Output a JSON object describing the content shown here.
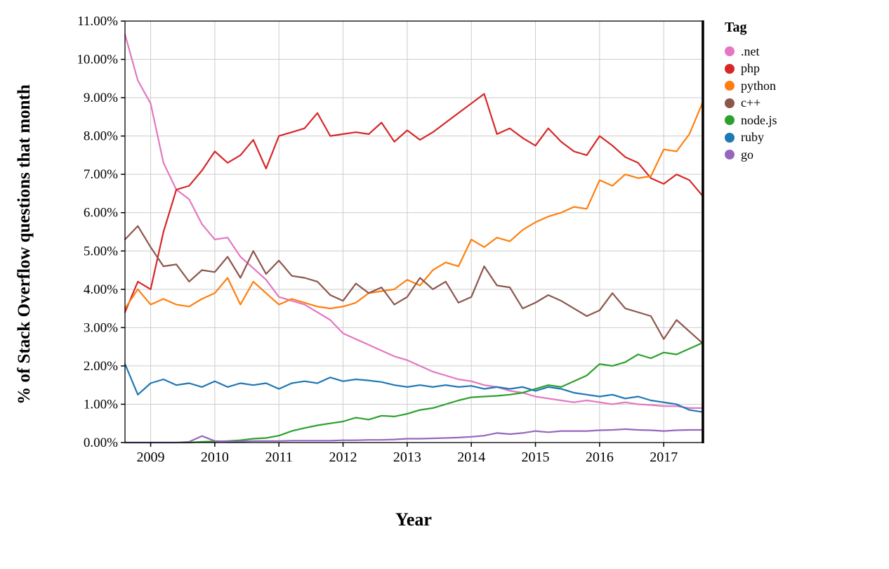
{
  "chart_data": {
    "type": "line",
    "title": "",
    "xlabel": "Year",
    "ylabel": "% of Stack Overflow questions that month",
    "legend_title": "Tag",
    "legend_position": "top-right",
    "grid": true,
    "xlim": [
      2008.6,
      2017.6
    ],
    "ylim": [
      0,
      11
    ],
    "x_tick_values": [
      2009,
      2010,
      2011,
      2012,
      2013,
      2014,
      2015,
      2016,
      2017
    ],
    "x_tick_labels": [
      "2009",
      "2010",
      "2011",
      "2012",
      "2013",
      "2014",
      "2015",
      "2016",
      "2017"
    ],
    "y_tick_values": [
      0,
      1,
      2,
      3,
      4,
      5,
      6,
      7,
      8,
      9,
      10,
      11
    ],
    "y_tick_labels": [
      "0.00%",
      "1.00%",
      "2.00%",
      "3.00%",
      "4.00%",
      "5.00%",
      "6.00%",
      "7.00%",
      "8.00%",
      "9.00%",
      "10.00%",
      "11.00%"
    ],
    "x": [
      2008.6,
      2008.8,
      2009.0,
      2009.2,
      2009.4,
      2009.6,
      2009.8,
      2010.0,
      2010.2,
      2010.4,
      2010.6,
      2010.8,
      2011.0,
      2011.2,
      2011.4,
      2011.6,
      2011.8,
      2012.0,
      2012.2,
      2012.4,
      2012.6,
      2012.8,
      2013.0,
      2013.2,
      2013.4,
      2013.6,
      2013.8,
      2014.0,
      2014.2,
      2014.4,
      2014.6,
      2014.8,
      2015.0,
      2015.2,
      2015.4,
      2015.6,
      2015.8,
      2016.0,
      2016.2,
      2016.4,
      2016.6,
      2016.8,
      2017.0,
      2017.2,
      2017.4,
      2017.6
    ],
    "series": [
      {
        "name": ".net",
        "color": "#e377c2",
        "values": [
          10.65,
          9.45,
          8.85,
          7.3,
          6.6,
          6.35,
          5.7,
          5.3,
          5.35,
          4.85,
          4.55,
          4.25,
          3.8,
          3.7,
          3.6,
          3.4,
          3.2,
          2.85,
          2.7,
          2.55,
          2.4,
          2.25,
          2.15,
          2.0,
          1.85,
          1.75,
          1.65,
          1.6,
          1.5,
          1.45,
          1.35,
          1.3,
          1.2,
          1.15,
          1.1,
          1.05,
          1.1,
          1.05,
          1.0,
          1.05,
          1.0,
          0.98,
          0.95,
          0.95,
          0.9,
          0.9
        ]
      },
      {
        "name": "php",
        "color": "#d62728",
        "values": [
          3.4,
          4.2,
          4.0,
          5.5,
          6.6,
          6.7,
          7.1,
          7.6,
          7.3,
          7.5,
          7.9,
          7.15,
          8.0,
          8.1,
          8.2,
          8.6,
          8.0,
          8.05,
          8.1,
          8.05,
          8.35,
          7.85,
          8.15,
          7.9,
          8.1,
          8.35,
          8.6,
          8.85,
          9.1,
          8.05,
          8.2,
          7.95,
          7.75,
          8.2,
          7.85,
          7.6,
          7.5,
          8.0,
          7.75,
          7.45,
          7.3,
          6.9,
          6.75,
          7.0,
          6.85,
          6.45
        ]
      },
      {
        "name": "python",
        "color": "#ff7f0e",
        "values": [
          3.5,
          4.0,
          3.6,
          3.75,
          3.6,
          3.55,
          3.75,
          3.9,
          4.3,
          3.6,
          4.2,
          3.9,
          3.6,
          3.75,
          3.65,
          3.55,
          3.5,
          3.55,
          3.65,
          3.9,
          3.95,
          4.0,
          4.25,
          4.1,
          4.5,
          4.7,
          4.6,
          5.3,
          5.1,
          5.35,
          5.25,
          5.55,
          5.75,
          5.9,
          6.0,
          6.15,
          6.1,
          6.85,
          6.7,
          7.0,
          6.9,
          6.95,
          7.65,
          7.6,
          8.05,
          8.85
        ]
      },
      {
        "name": "c++",
        "color": "#8c564b",
        "values": [
          5.3,
          5.65,
          5.1,
          4.6,
          4.65,
          4.2,
          4.5,
          4.45,
          4.85,
          4.3,
          5.0,
          4.4,
          4.75,
          4.35,
          4.3,
          4.2,
          3.85,
          3.7,
          4.15,
          3.9,
          4.05,
          3.6,
          3.8,
          4.3,
          4.0,
          4.2,
          3.65,
          3.8,
          4.6,
          4.1,
          4.05,
          3.5,
          3.65,
          3.85,
          3.7,
          3.5,
          3.3,
          3.45,
          3.9,
          3.5,
          3.4,
          3.3,
          2.7,
          3.2,
          2.9,
          2.6
        ]
      },
      {
        "name": "node.js",
        "color": "#2ca02c",
        "values": [
          0.0,
          0.0,
          0.0,
          0.0,
          0.0,
          0.0,
          0.02,
          0.03,
          0.04,
          0.06,
          0.1,
          0.12,
          0.18,
          0.3,
          0.38,
          0.45,
          0.5,
          0.55,
          0.65,
          0.6,
          0.7,
          0.68,
          0.75,
          0.85,
          0.9,
          1.0,
          1.1,
          1.18,
          1.2,
          1.22,
          1.25,
          1.3,
          1.4,
          1.5,
          1.45,
          1.6,
          1.75,
          2.05,
          2.0,
          2.1,
          2.3,
          2.2,
          2.35,
          2.3,
          2.45,
          2.6
        ]
      },
      {
        "name": "ruby",
        "color": "#1f77b4",
        "values": [
          2.05,
          1.25,
          1.55,
          1.65,
          1.5,
          1.55,
          1.45,
          1.6,
          1.45,
          1.55,
          1.5,
          1.55,
          1.4,
          1.55,
          1.6,
          1.55,
          1.7,
          1.6,
          1.65,
          1.62,
          1.58,
          1.5,
          1.45,
          1.5,
          1.45,
          1.5,
          1.45,
          1.48,
          1.4,
          1.45,
          1.4,
          1.45,
          1.35,
          1.45,
          1.4,
          1.3,
          1.25,
          1.2,
          1.25,
          1.15,
          1.2,
          1.1,
          1.05,
          1.0,
          0.85,
          0.8
        ]
      },
      {
        "name": "go",
        "color": "#9467bd",
        "values": [
          0.0,
          0.0,
          0.0,
          0.0,
          0.0,
          0.02,
          0.17,
          0.04,
          0.03,
          0.03,
          0.04,
          0.04,
          0.04,
          0.05,
          0.05,
          0.05,
          0.05,
          0.06,
          0.06,
          0.07,
          0.07,
          0.08,
          0.1,
          0.1,
          0.11,
          0.12,
          0.13,
          0.15,
          0.18,
          0.25,
          0.22,
          0.25,
          0.3,
          0.27,
          0.3,
          0.3,
          0.3,
          0.32,
          0.33,
          0.35,
          0.33,
          0.32,
          0.3,
          0.32,
          0.33,
          0.33
        ]
      }
    ]
  }
}
